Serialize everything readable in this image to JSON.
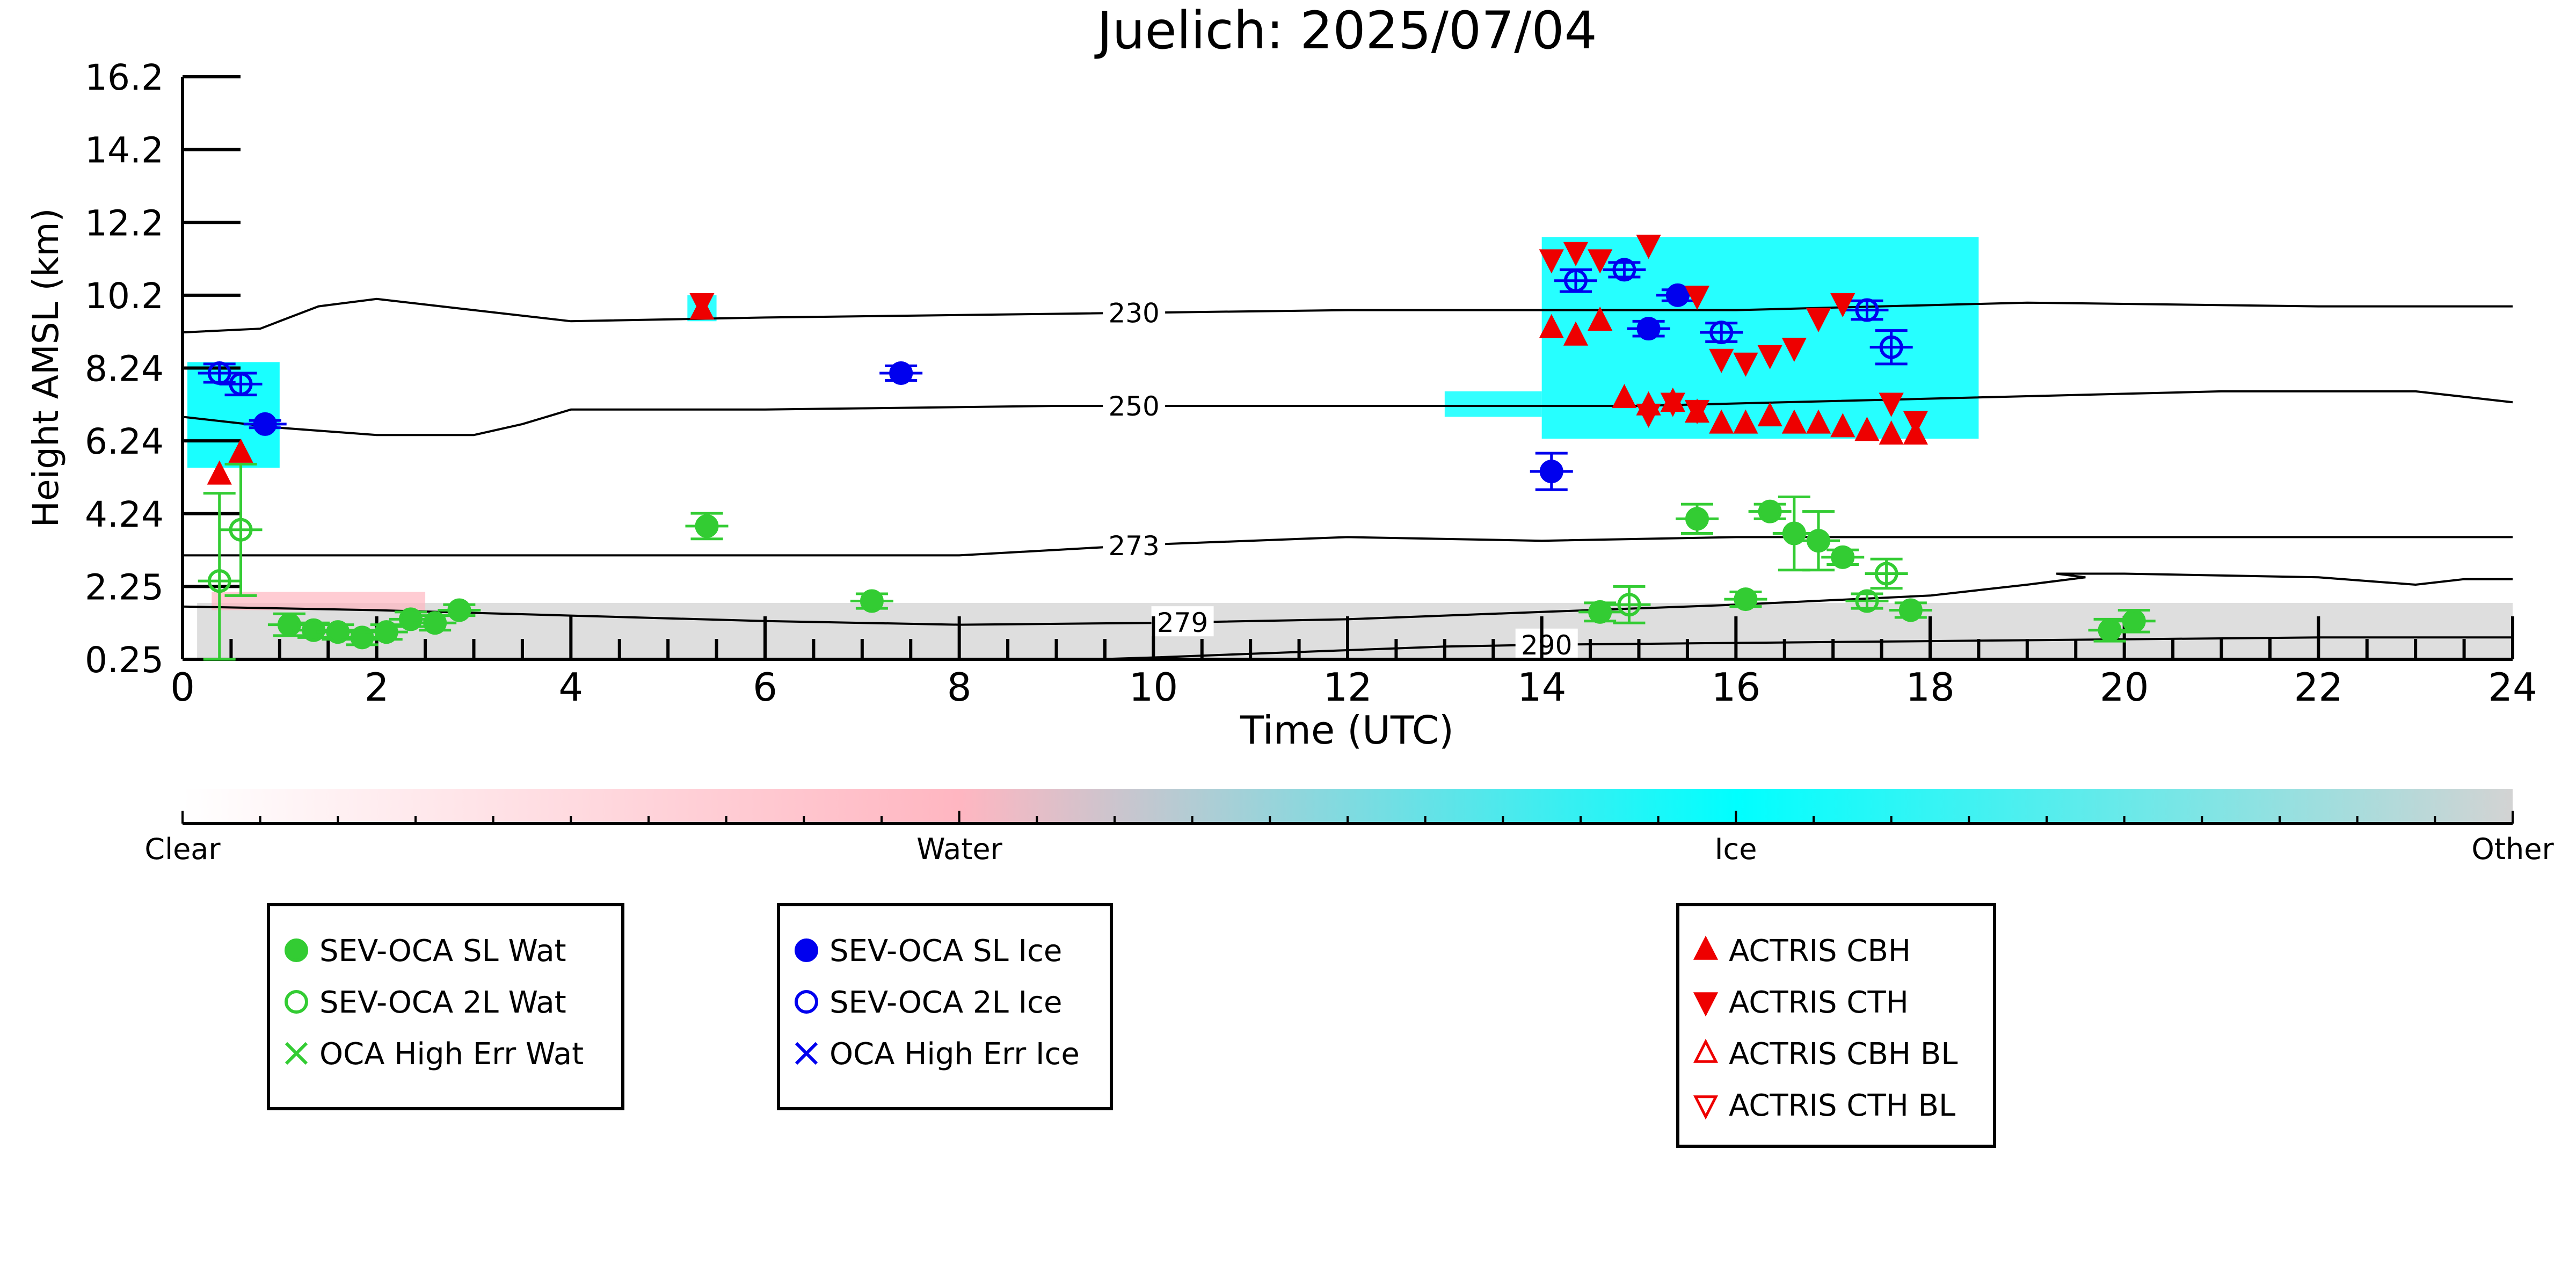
{
  "chart_data": {
    "type": "scatter",
    "title": "Juelich: 2025/07/04",
    "xlabel": "Time (UTC)",
    "ylabel": "Height AMSL (km)",
    "xlim": [
      0,
      24
    ],
    "ylim": [
      0.25,
      16.2
    ],
    "x_ticks": [
      0,
      2,
      4,
      6,
      8,
      10,
      12,
      14,
      16,
      18,
      20,
      22,
      24
    ],
    "y_ticks": [
      "0.25",
      "2.25",
      "4.24",
      "6.24",
      "8.24",
      "10.2",
      "12.2",
      "14.2",
      "16.2"
    ],
    "colorbar": {
      "labels": [
        "Clear",
        "Water",
        "Ice",
        "Other"
      ],
      "colors": [
        "#ffffff",
        "#ffb6c1",
        "#00ffff",
        "#d3d3d3"
      ]
    },
    "isotherms": [
      {
        "label": "230",
        "label_x": 9.8,
        "points": [
          [
            0,
            9.2
          ],
          [
            0.8,
            9.3
          ],
          [
            1.0,
            9.5
          ],
          [
            1.4,
            9.9
          ],
          [
            2.0,
            10.1
          ],
          [
            3.0,
            9.8
          ],
          [
            4.0,
            9.5
          ],
          [
            6.0,
            9.6
          ],
          [
            9.0,
            9.7
          ],
          [
            12.0,
            9.8
          ],
          [
            16.0,
            9.8
          ],
          [
            19.0,
            10.0
          ],
          [
            22.0,
            9.9
          ],
          [
            24.0,
            9.9
          ]
        ]
      },
      {
        "label": "250",
        "label_x": 9.8,
        "points": [
          [
            0,
            6.9
          ],
          [
            1.0,
            6.6
          ],
          [
            2.0,
            6.4
          ],
          [
            3.0,
            6.4
          ],
          [
            3.5,
            6.7
          ],
          [
            4.0,
            7.1
          ],
          [
            6.0,
            7.1
          ],
          [
            9.0,
            7.2
          ],
          [
            12.0,
            7.2
          ],
          [
            15.0,
            7.2
          ],
          [
            18.0,
            7.4
          ],
          [
            21.0,
            7.6
          ],
          [
            23.0,
            7.6
          ],
          [
            24.0,
            7.3
          ]
        ]
      },
      {
        "label": "273",
        "label_x": 9.8,
        "points": [
          [
            0,
            3.1
          ],
          [
            3.0,
            3.1
          ],
          [
            6.0,
            3.1
          ],
          [
            8.0,
            3.1
          ],
          [
            10.0,
            3.4
          ],
          [
            12.0,
            3.6
          ],
          [
            14.0,
            3.5
          ],
          [
            16.0,
            3.6
          ],
          [
            18.0,
            3.6
          ],
          [
            20.0,
            3.6
          ],
          [
            24.0,
            3.6
          ]
        ]
      },
      {
        "label": "279",
        "label_x": 10.3,
        "points": [
          [
            0,
            1.7
          ],
          [
            2.0,
            1.6
          ],
          [
            4.0,
            1.45
          ],
          [
            6.0,
            1.3
          ],
          [
            8.0,
            1.2
          ],
          [
            10.0,
            1.25
          ],
          [
            12.0,
            1.35
          ],
          [
            14.0,
            1.55
          ],
          [
            16.0,
            1.75
          ],
          [
            18.0,
            2.0
          ],
          [
            19.0,
            2.3
          ],
          [
            19.6,
            2.5
          ],
          [
            19.3,
            2.6
          ],
          [
            20.0,
            2.6
          ],
          [
            22.0,
            2.5
          ],
          [
            23.0,
            2.3
          ],
          [
            23.5,
            2.45
          ],
          [
            24.0,
            2.45
          ]
        ]
      },
      {
        "label": "290",
        "label_x": 14.05,
        "points": [
          [
            9.4,
            0.25
          ],
          [
            10.0,
            0.3
          ],
          [
            11.0,
            0.4
          ],
          [
            12.0,
            0.5
          ],
          [
            13.0,
            0.6
          ],
          [
            14.0,
            0.65
          ],
          [
            16.0,
            0.7
          ],
          [
            18.0,
            0.75
          ],
          [
            20.0,
            0.8
          ],
          [
            22.0,
            0.85
          ],
          [
            24.0,
            0.85
          ]
        ]
      }
    ],
    "series": [
      {
        "name": "SEV-OCA SL Wat",
        "color": "#33cc33",
        "filled": true,
        "marker": "circle",
        "points": [
          [
            1.1,
            1.2,
            0.3
          ],
          [
            1.35,
            1.05,
            0.2
          ],
          [
            1.6,
            1.0,
            0.2
          ],
          [
            1.85,
            0.85,
            0.2
          ],
          [
            2.1,
            1.0,
            0.2
          ],
          [
            2.35,
            1.35,
            0.2
          ],
          [
            2.6,
            1.25,
            0.2
          ],
          [
            2.85,
            1.6,
            0.15
          ],
          [
            5.4,
            3.9,
            0.35
          ],
          [
            7.1,
            1.85,
            0.2
          ],
          [
            14.6,
            1.55,
            0.25
          ],
          [
            15.6,
            4.1,
            0.4
          ],
          [
            16.1,
            1.9,
            0.2
          ],
          [
            16.35,
            4.3,
            0.2
          ],
          [
            16.6,
            3.7,
            1.0
          ],
          [
            16.85,
            3.5,
            0.8
          ],
          [
            17.1,
            3.05,
            0.2
          ],
          [
            17.8,
            1.6,
            0.2
          ],
          [
            19.85,
            1.05,
            0.3
          ],
          [
            20.1,
            1.3,
            0.3
          ]
        ]
      },
      {
        "name": "SEV-OCA 2L Wat",
        "color": "#33cc33",
        "filled": false,
        "marker": "circle",
        "points": [
          [
            0.38,
            2.4,
            2.4
          ],
          [
            0.6,
            3.8,
            1.8
          ],
          [
            14.9,
            1.75,
            0.5
          ],
          [
            17.35,
            1.85,
            0.2
          ],
          [
            17.55,
            2.6,
            0.4
          ]
        ]
      },
      {
        "name": "SEV-OCA SL Ice",
        "color": "#0000ee",
        "filled": true,
        "marker": "circle",
        "points": [
          [
            0.85,
            6.7,
            0.1
          ],
          [
            7.4,
            8.1,
            0.2
          ],
          [
            14.1,
            5.4,
            0.5
          ],
          [
            15.1,
            9.3,
            0.2
          ],
          [
            15.4,
            10.2,
            0.15
          ]
        ]
      },
      {
        "name": "SEV-OCA 2L Ice",
        "color": "#0000ee",
        "filled": false,
        "marker": "circle",
        "points": [
          [
            0.38,
            8.1,
            0.25
          ],
          [
            0.6,
            7.8,
            0.3
          ],
          [
            14.35,
            10.6,
            0.3
          ],
          [
            14.85,
            10.9,
            0.2
          ],
          [
            15.85,
            9.2,
            0.25
          ],
          [
            17.35,
            9.8,
            0.25
          ],
          [
            17.6,
            8.8,
            0.45
          ]
        ]
      },
      {
        "name": "OCA High Err Wat",
        "color": "#33cc33",
        "filled": false,
        "marker": "x",
        "points": []
      },
      {
        "name": "OCA High Err Ice",
        "color": "#0000ee",
        "filled": false,
        "marker": "x",
        "points": []
      },
      {
        "name": "ACTRIS CBH",
        "color": "#ee0000",
        "filled": true,
        "marker": "triangle-up",
        "points": [
          [
            0.38,
            5.3
          ],
          [
            0.6,
            5.9
          ],
          [
            5.35,
            9.8
          ],
          [
            14.1,
            9.3
          ],
          [
            14.35,
            9.1
          ],
          [
            14.6,
            9.5
          ],
          [
            14.85,
            7.4
          ],
          [
            15.1,
            7.2
          ],
          [
            15.35,
            7.3
          ],
          [
            15.6,
            7.0
          ],
          [
            15.85,
            6.7
          ],
          [
            16.1,
            6.7
          ],
          [
            16.35,
            6.9
          ],
          [
            16.6,
            6.7
          ],
          [
            16.85,
            6.7
          ],
          [
            17.1,
            6.6
          ],
          [
            17.35,
            6.5
          ],
          [
            17.6,
            6.4
          ],
          [
            17.85,
            6.4
          ]
        ]
      },
      {
        "name": "ACTRIS CTH",
        "color": "#ee0000",
        "filled": true,
        "marker": "triangle-down",
        "points": [
          [
            5.35,
            10.0
          ],
          [
            14.1,
            11.2
          ],
          [
            14.35,
            11.4
          ],
          [
            14.6,
            11.2
          ],
          [
            15.1,
            11.6
          ],
          [
            15.6,
            10.2
          ],
          [
            15.85,
            8.5
          ],
          [
            16.1,
            8.4
          ],
          [
            16.35,
            8.6
          ],
          [
            16.6,
            8.8
          ],
          [
            16.85,
            9.6
          ],
          [
            17.1,
            10.0
          ],
          [
            17.6,
            7.3
          ],
          [
            17.85,
            6.8
          ],
          [
            15.35,
            7.3
          ],
          [
            15.6,
            7.1
          ],
          [
            15.1,
            7.0
          ]
        ]
      },
      {
        "name": "ACTRIS CBH BL",
        "color": "#ee0000",
        "filled": false,
        "marker": "triangle-up",
        "points": []
      },
      {
        "name": "ACTRIS CTH BL",
        "color": "#ee0000",
        "filled": false,
        "marker": "triangle-down",
        "points": []
      }
    ],
    "legends": [
      {
        "entries": [
          "SEV-OCA SL Wat",
          "SEV-OCA 2L Wat",
          "OCA High Err Wat"
        ]
      },
      {
        "entries": [
          "SEV-OCA SL Ice",
          "SEV-OCA 2L Ice",
          "OCA High Err Ice"
        ]
      },
      {
        "entries": [
          "ACTRIS CBH",
          "ACTRIS CTH",
          "ACTRIS CBH BL",
          "ACTRIS CTH BL"
        ]
      }
    ],
    "grid": false,
    "legend_placement": "below-plot"
  }
}
